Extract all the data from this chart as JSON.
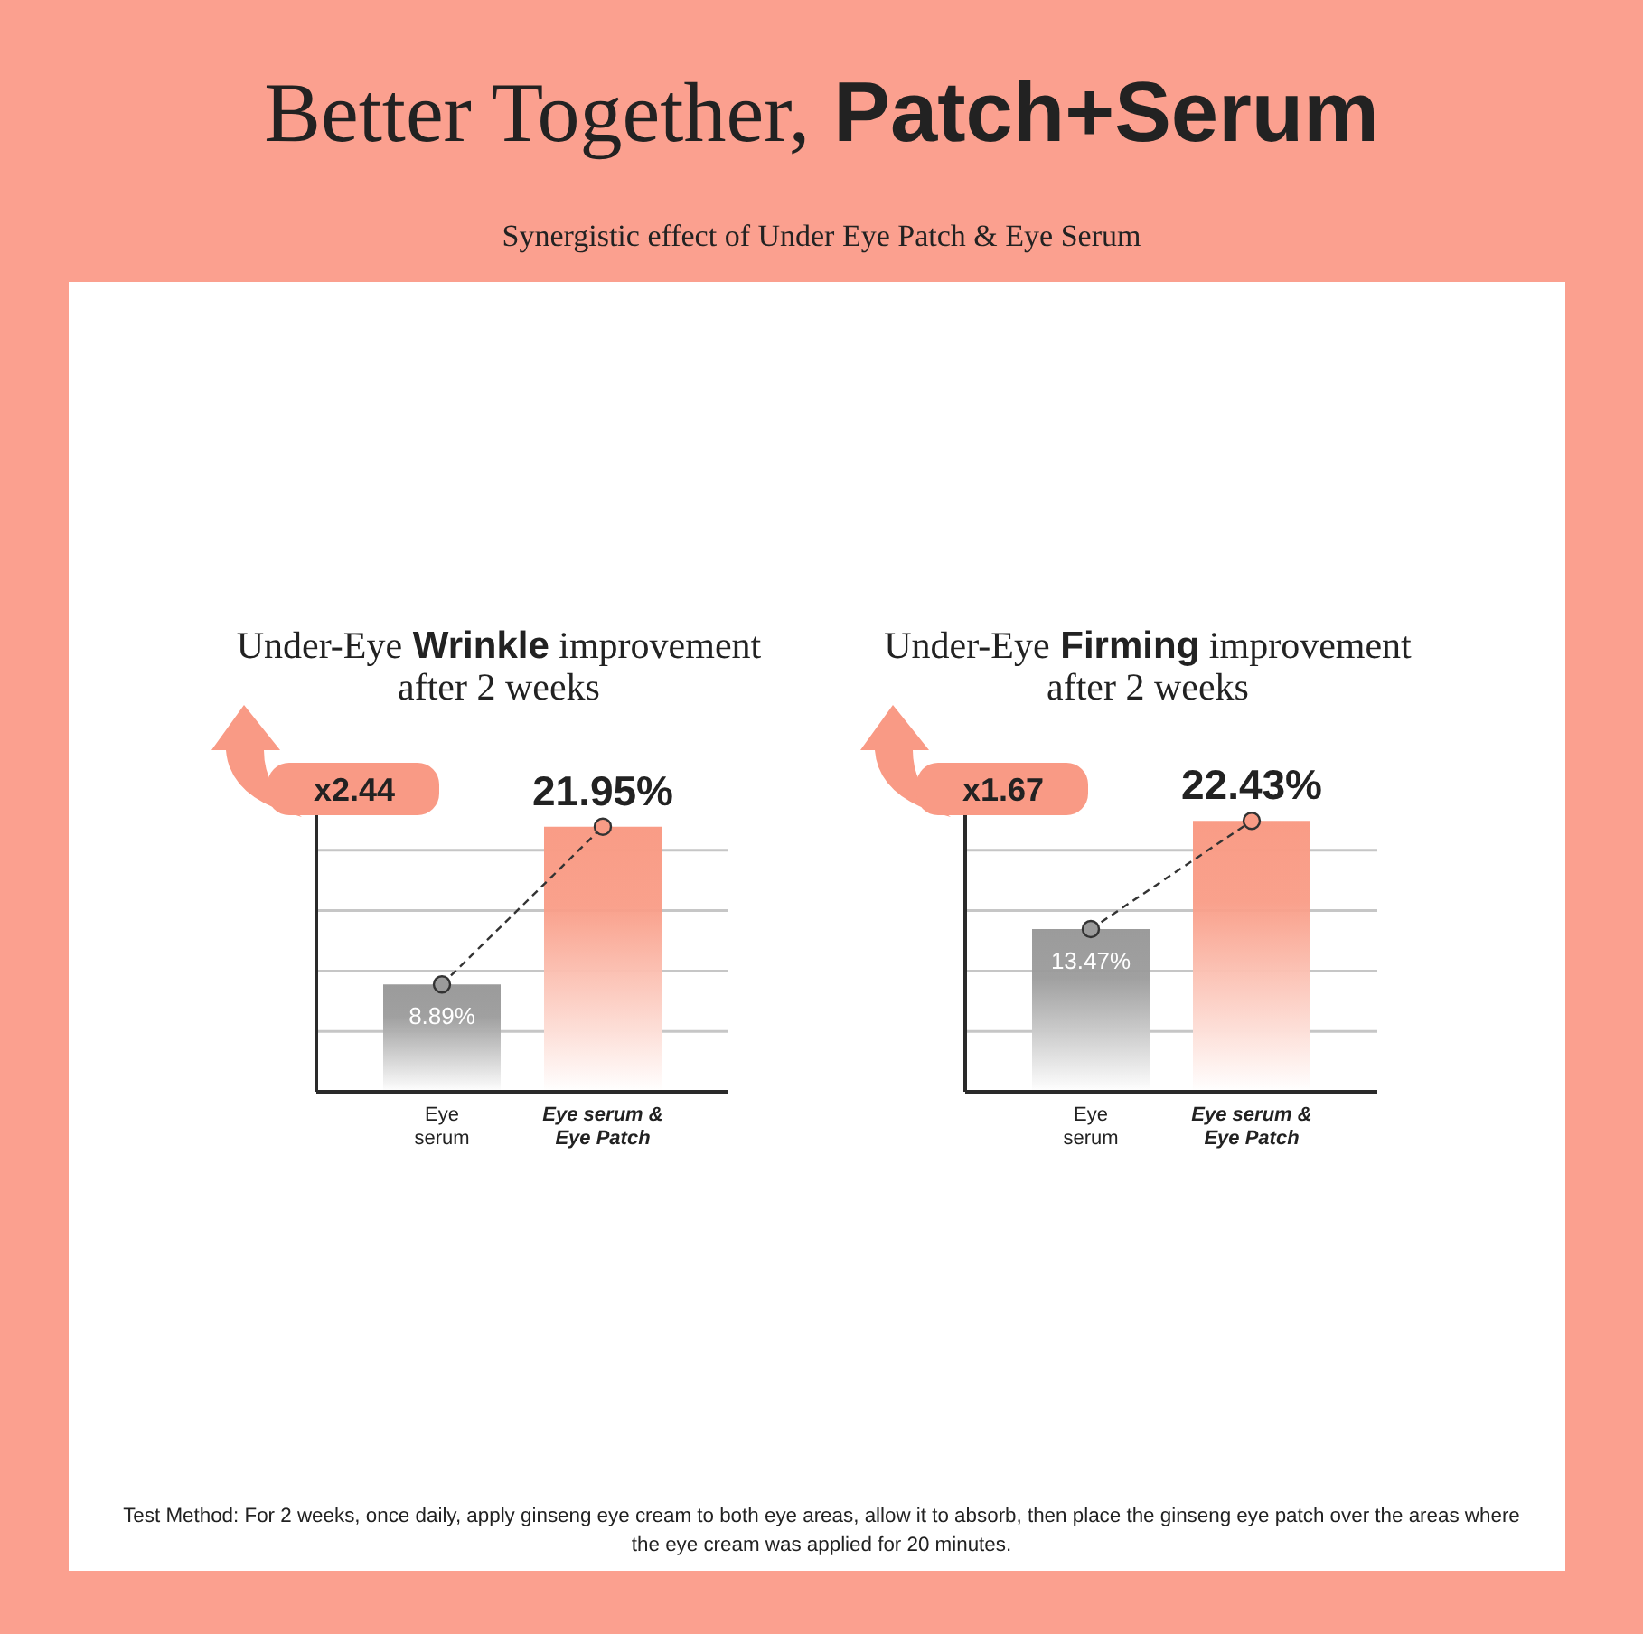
{
  "chart_data": [
    {
      "type": "other",
      "title": "Better Together, Patch+Serum",
      "subtitle": "Synergistic effect of Under Eye Patch & Eye Serum",
      "annotations": [
        "Test Method: For 2 weeks, once daily, apply ginseng eye cream to both eye areas, allow it to absorb, then place the ginseng eye patch over the areas where the eye cream was applied for 20 minutes."
      ]
    },
    {
      "type": "bar",
      "title": "Under-Eye Wrinkle improvement after 2 weeks",
      "categories": [
        "Eye serum",
        "Eye serum & Eye Patch"
      ],
      "series": [
        {
          "type": "bar",
          "colors": [
            "#9b9b9b",
            "#f99c86"
          ],
          "values": [
            8.89,
            21.95
          ],
          "value_labels": [
            "8.89%",
            "21.95%"
          ]
        },
        {
          "type": "line",
          "color": "#333333",
          "values": [
            8.89,
            21.95
          ],
          "line_style": "dashed",
          "marker": "circle"
        }
      ],
      "ylim": [
        0,
        23.5
      ],
      "grid": "y",
      "tick_labels": "x",
      "annotations": [
        "x2.44"
      ]
    },
    {
      "type": "bar",
      "title": "Under-Eye Firming improvement after 2 weeks",
      "categories": [
        "Eye serum",
        "Eye serum & Eye Patch"
      ],
      "series": [
        {
          "type": "bar",
          "colors": [
            "#9b9b9b",
            "#f99c86"
          ],
          "values": [
            13.47,
            22.43
          ],
          "value_labels": [
            "13.47%",
            "22.43%"
          ]
        },
        {
          "type": "line",
          "color": "#333333",
          "values": [
            13.47,
            22.43
          ],
          "line_style": "dashed",
          "marker": "circle"
        }
      ],
      "ylim": [
        0,
        23.5
      ],
      "grid": "y",
      "tick_labels": "x",
      "annotations": [
        "x1.67"
      ]
    }
  ]
}
